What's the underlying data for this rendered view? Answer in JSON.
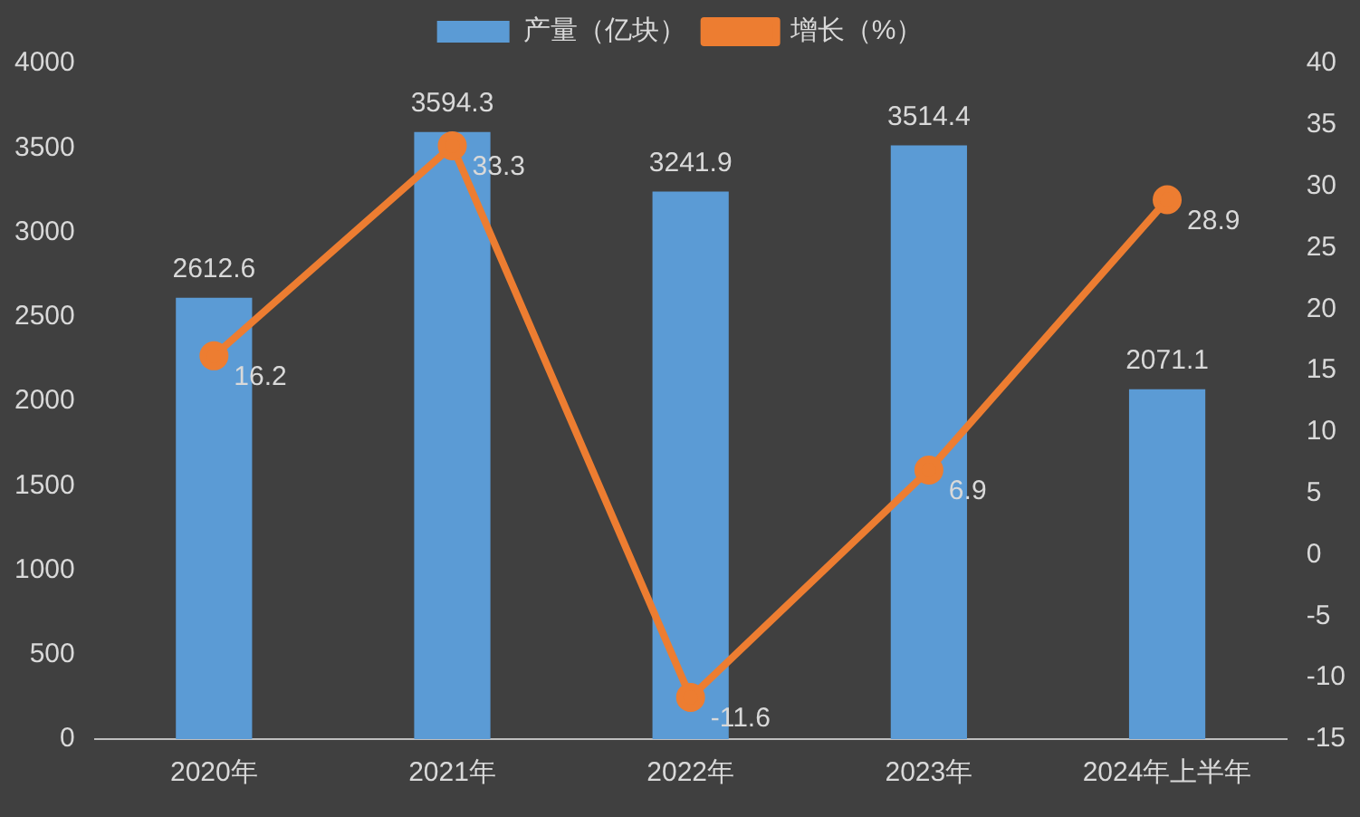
{
  "chart_data": {
    "type": "bar",
    "categories": [
      "2020年",
      "2021年",
      "2022年",
      "2023年",
      "2024年上半年"
    ],
    "series": [
      {
        "name": "产量（亿块）",
        "color": "#5b9bd5",
        "values": [
          2612.6,
          3594.3,
          3241.9,
          3514.4,
          2071.1
        ]
      },
      {
        "name": "增长（%）",
        "type": "line",
        "axis": "y2",
        "color": "#ed7d31",
        "values": [
          16.2,
          33.3,
          -11.6,
          6.9,
          28.9
        ]
      }
    ],
    "ylim": [
      0,
      4000
    ],
    "yticks": [
      0,
      500,
      1000,
      1500,
      2000,
      2500,
      3000,
      3500,
      4000
    ],
    "y2lim": [
      -15,
      40
    ],
    "y2ticks": [
      -15,
      -10,
      -5,
      0,
      5,
      10,
      15,
      20,
      25,
      30,
      35,
      40
    ],
    "legend": "top",
    "data_labels": true,
    "marker": "circle"
  }
}
